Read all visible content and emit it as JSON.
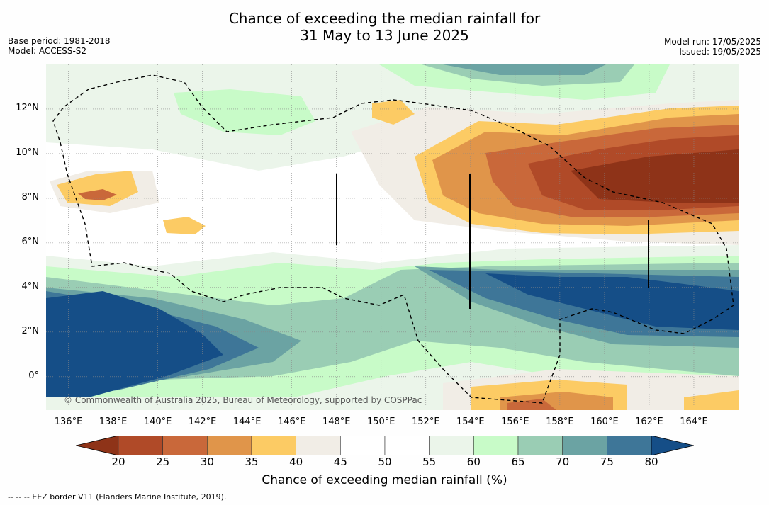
{
  "title": {
    "line1": "Chance of exceeding the median rainfall for",
    "line2": "31 May to 13 June 2025"
  },
  "meta_left": {
    "base_period": "Base period: 1981-2018",
    "model": "Model: ACCESS-S2"
  },
  "meta_right": {
    "model_run": "Model run: 17/05/2025",
    "issued": "Issued: 19/05/2025"
  },
  "map": {
    "lon_range": [
      135,
      166
    ],
    "lat_range": [
      -1.5,
      14
    ],
    "lat_labels": [
      "12°N",
      "10°N",
      "8°N",
      "6°N",
      "4°N",
      "2°N",
      "0°"
    ],
    "lat_values": [
      12,
      10,
      8,
      6,
      4,
      2,
      0
    ],
    "lon_labels": [
      "136°E",
      "138°E",
      "140°E",
      "142°E",
      "144°E",
      "146°E",
      "148°E",
      "150°E",
      "152°E",
      "154°E",
      "156°E",
      "158°E",
      "160°E",
      "162°E",
      "164°E"
    ],
    "lon_values": [
      136,
      138,
      140,
      142,
      144,
      146,
      148,
      150,
      152,
      154,
      156,
      158,
      160,
      162,
      164
    ],
    "copyright": "© Commonwealth of Australia 2025, Bureau of Meteorology, supported by COSPPac"
  },
  "colorbar": {
    "ticks": [
      "20",
      "25",
      "30",
      "35",
      "40",
      "45",
      "50",
      "55",
      "60",
      "65",
      "70",
      "75",
      "80"
    ],
    "colors": [
      "#8e3318",
      "#b04a28",
      "#c9683a",
      "#e0954a",
      "#fccb64",
      "#f1ede6",
      "#ffffff",
      "#ffffff",
      "#ebf5ea",
      "#c8fbc8",
      "#9acdb4",
      "#6ba3a3",
      "#3e7698",
      "#154e87"
    ],
    "label": "Chance of exceeding median rainfall (%)"
  },
  "footnote": "-- -- -- EEZ border V11 (Flanders Marine Institute, 2019)."
}
